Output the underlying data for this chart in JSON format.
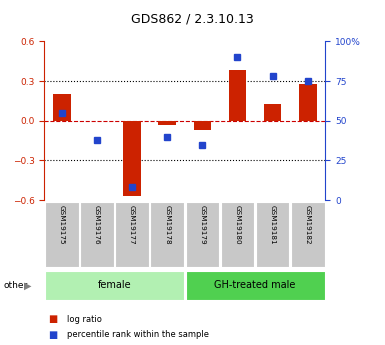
{
  "title": "GDS862 / 2.3.10.13",
  "samples": [
    "GSM19175",
    "GSM19176",
    "GSM19177",
    "GSM19178",
    "GSM19179",
    "GSM19180",
    "GSM19181",
    "GSM19182"
  ],
  "log_ratio": [
    0.2,
    0.0,
    -0.57,
    -0.03,
    -0.07,
    0.38,
    0.13,
    0.28
  ],
  "percentile_rank": [
    55,
    38,
    8,
    40,
    35,
    90,
    78,
    75
  ],
  "groups": [
    {
      "label": "female",
      "start": 0,
      "end": 4,
      "color": "#b2f0b2"
    },
    {
      "label": "GH-treated male",
      "start": 4,
      "end": 8,
      "color": "#50d050"
    }
  ],
  "ylim_left": [
    -0.6,
    0.6
  ],
  "ylim_right": [
    0,
    100
  ],
  "yticks_left": [
    -0.6,
    -0.3,
    0.0,
    0.3,
    0.6
  ],
  "yticks_right": [
    0,
    25,
    50,
    75,
    100
  ],
  "bar_color_red": "#cc2200",
  "bar_color_blue": "#2244cc",
  "bg_color": "#ffffff",
  "plot_bg": "#ffffff",
  "zero_line_color": "#cc0000",
  "sample_box_color": "#c8c8c8",
  "legend_red_label": "log ratio",
  "legend_blue_label": "percentile rank within the sample"
}
